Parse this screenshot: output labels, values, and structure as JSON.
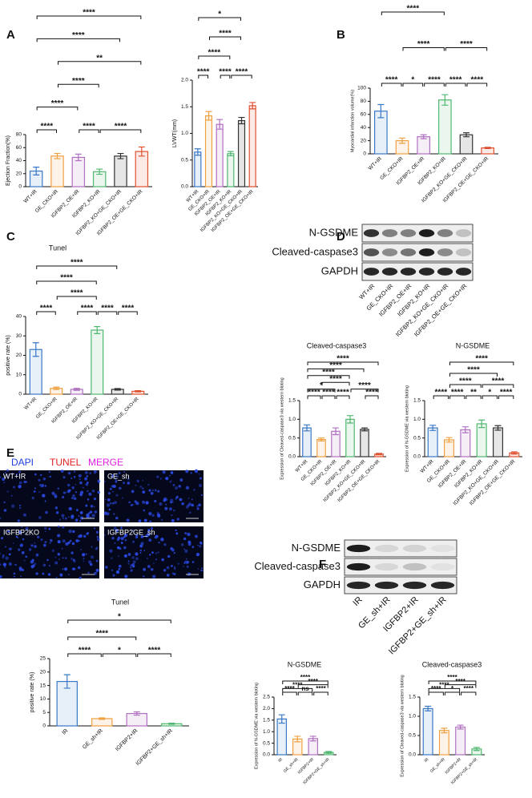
{
  "panel_labels": [
    "A",
    "B",
    "C",
    "D",
    "E",
    "F"
  ],
  "blots": [
    {
      "rows": [
        "N-GSDME",
        "Cleaved-caspase3",
        "GAPDH"
      ],
      "lanes": [
        "WT+IR",
        "GE_CKO+IR",
        "IGFBP2_OE+IR",
        "IGFBP2_KO+IR",
        "IGFBP2_KO+GE_CKO+IR",
        "IGFBP2_OE+GE_CKO+IR"
      ]
    },
    {
      "rows": [
        "N-GSDME",
        "Cleaved-caspase3",
        "GAPDH"
      ],
      "lanes": [
        "IR",
        "GE_sh+IR",
        "IGFBP2+IR",
        "IGFBP2+GE_sh+IR"
      ]
    }
  ],
  "micrographs": {
    "legend": [
      {
        "label": "DAPI",
        "color": "#2040e0"
      },
      {
        "label": "TUNEL",
        "color": "#e02020"
      },
      {
        "label": "MERGE",
        "color": "#e020e0"
      }
    ],
    "panels": [
      "WT+IR",
      "GE_sh",
      "IGFBP2KO",
      "IGFBP2GE_sh"
    ]
  },
  "chart_data": [
    {
      "type": "bar",
      "y_label": "Ejection Fraction(%)",
      "categories": [
        "WT+IR",
        "GE_CKO+IR",
        "IGFBP2_OE+IR",
        "IGFBP2_KO+IR",
        "IGFBP2_KO+GE_CKO+IR",
        "IGFBP2_OE+GE_CKO+IR"
      ],
      "values": [
        24,
        47,
        45,
        23,
        47,
        54
      ],
      "errors": [
        6,
        4,
        5,
        4,
        4,
        7
      ],
      "colors": [
        "#3a78c8",
        "#f0a040",
        "#b070c0",
        "#50b870",
        "#333333",
        "#e05030"
      ],
      "ylim": [
        0,
        80
      ],
      "yticks": [
        0,
        20,
        40,
        60,
        80
      ],
      "comparisons": [
        {
          "pair": [
            0,
            5
          ],
          "label": "****"
        },
        {
          "pair": [
            0,
            4
          ],
          "label": "****"
        },
        {
          "pair": [
            1,
            5
          ],
          "label": "**"
        },
        {
          "pair": [
            1,
            3
          ],
          "label": "****"
        },
        {
          "pair": [
            0,
            2
          ],
          "label": "****"
        },
        {
          "pair": [
            3,
            5
          ],
          "label": "****"
        },
        {
          "pair": [
            0,
            1
          ],
          "label": "****"
        },
        {
          "pair": [
            2,
            3
          ],
          "label": "****"
        }
      ]
    },
    {
      "type": "bar",
      "y_label": "LVWT(mm)",
      "categories": [
        "WT+IR",
        "GE_CKO+IR",
        "IGFBP2_OE+IR",
        "IGFBP2_KO+IR",
        "IGFBP2_KO+GE_CKO+IR",
        "IGFBP2_OE+GE_CKO+IR"
      ],
      "values": [
        0.65,
        1.33,
        1.17,
        0.62,
        1.24,
        1.52
      ],
      "errors": [
        0.06,
        0.08,
        0.09,
        0.04,
        0.06,
        0.06
      ],
      "colors": [
        "#3a78c8",
        "#f0a040",
        "#b070c0",
        "#50b870",
        "#333333",
        "#e05030"
      ],
      "ylim": [
        0,
        2
      ],
      "yticks": [
        {
          "value": 0,
          "label": "0.0"
        },
        0.5,
        {
          "value": 1,
          "label": "1.0"
        },
        1.5,
        {
          "value": 2,
          "label": "2.0"
        }
      ],
      "comparisons": [
        {
          "pair": [
            0,
            4
          ],
          "label": "*"
        },
        {
          "pair": [
            1,
            4
          ],
          "label": "****"
        },
        {
          "pair": [
            0,
            3
          ],
          "label": "****"
        },
        {
          "pair": [
            0,
            1
          ],
          "label": "****"
        },
        {
          "pair": [
            2,
            3
          ],
          "label": "****"
        },
        {
          "pair": [
            3,
            5
          ],
          "label": "****"
        }
      ]
    },
    {
      "type": "bar",
      "y_label": "Myocardial infarction volume(%)",
      "categories": [
        "WT+IR",
        "GE_CKO+IR",
        "IGFBP2_OE+IR",
        "IGFBP2_KO+IR",
        "IGFBP2_KO+GE_CKO+IR",
        "IGFBP2_OE+GE_CKO+IR"
      ],
      "values": [
        65,
        20,
        26,
        82,
        29,
        9
      ],
      "errors": [
        10,
        4,
        3,
        8,
        3,
        1
      ],
      "colors": [
        "#3a78c8",
        "#f0a040",
        "#b070c0",
        "#50b870",
        "#333333",
        "#e05030"
      ],
      "ylim": [
        0,
        100
      ],
      "yticks": [
        0,
        20,
        40,
        60,
        80,
        100
      ],
      "comparisons": [
        {
          "pair": [
            3,
            5
          ],
          "label": "****"
        },
        {
          "pair": [
            1,
            3
          ],
          "label": "****"
        },
        {
          "pair": [
            0,
            3
          ],
          "label": "****"
        },
        {
          "pair": [
            3,
            4
          ],
          "label": "****"
        },
        {
          "pair": [
            1,
            2
          ],
          "label": "*"
        },
        {
          "pair": [
            0,
            1
          ],
          "label": "****"
        },
        {
          "pair": [
            2,
            3
          ],
          "label": "****"
        },
        {
          "pair": [
            4,
            5
          ],
          "label": "****"
        }
      ]
    },
    {
      "type": "bar",
      "title": "Tunel",
      "y_label": "positive rate (%)",
      "categories": [
        "WT+IR",
        "GE_CKO+IR",
        "IGFBP2_OE+IR",
        "IGFBP2_KO+IR",
        "IGFBP2_KO+GE_CKO+IR",
        "IGFBP2_OE+GE_CKO+IR"
      ],
      "values": [
        23,
        3,
        2.5,
        33,
        2.5,
        1.5
      ],
      "errors": [
        3.5,
        0.6,
        0.5,
        1.8,
        0.4,
        0.3
      ],
      "colors": [
        "#3a78c8",
        "#f0a040",
        "#b070c0",
        "#50b870",
        "#333333",
        "#e05030"
      ],
      "ylim": [
        0,
        40
      ],
      "yticks": [
        0,
        10,
        20,
        30,
        40
      ],
      "comparisons": [
        {
          "pair": [
            0,
            4
          ],
          "label": "****"
        },
        {
          "pair": [
            0,
            3
          ],
          "label": "****"
        },
        {
          "pair": [
            1,
            3
          ],
          "label": "****"
        },
        {
          "pair": [
            0,
            1
          ],
          "label": "****"
        },
        {
          "pair": [
            2,
            3
          ],
          "label": "****"
        },
        {
          "pair": [
            3,
            4
          ],
          "label": "****"
        },
        {
          "pair": [
            4,
            5
          ],
          "label": "****"
        }
      ]
    },
    {
      "type": "bar",
      "title": "Cleaved-caspase3",
      "y_label": "Expression of Cleaved-caspase3 via western bloting",
      "categories": [
        "WT+IR",
        "GE_CKO+IR",
        "IGFBP2_OE+IR",
        "IGFBP2_KO+IR",
        "IGFBP2_KO+GE_CKO+IR",
        "IGFBP2_OE+GE_CKO+IR"
      ],
      "values": [
        0.77,
        0.46,
        0.68,
        1.0,
        0.73,
        0.07
      ],
      "errors": [
        0.08,
        0.04,
        0.09,
        0.1,
        0.04,
        0.02
      ],
      "colors": [
        "#3a78c8",
        "#f0a040",
        "#b070c0",
        "#50b870",
        "#333333",
        "#e05030"
      ],
      "ylim": [
        0,
        1.5
      ],
      "yticks": [
        {
          "value": 0,
          "label": "0.0"
        },
        0.5,
        {
          "value": 1,
          "label": "1.0"
        },
        1.5
      ],
      "comparisons": [
        {
          "pair": [
            0,
            5
          ],
          "label": "****"
        },
        {
          "pair": [
            0,
            4
          ],
          "label": "****"
        },
        {
          "pair": [
            0,
            3
          ],
          "label": "****"
        },
        {
          "pair": [
            1,
            3
          ],
          "label": "****"
        },
        {
          "pair": [
            0,
            2
          ],
          "label": "*"
        },
        {
          "pair": [
            3,
            5
          ],
          "label": "****"
        },
        {
          "pair": [
            1,
            2
          ],
          "label": "****"
        },
        {
          "pair": [
            0,
            1
          ],
          "label": "****"
        },
        {
          "pair": [
            2,
            3
          ],
          "label": "****"
        },
        {
          "pair": [
            4,
            5
          ],
          "label": "****"
        }
      ]
    },
    {
      "type": "bar",
      "title": "N-GSDME",
      "y_label": "Expression of N-GSDME via western bloting",
      "categories": [
        "WT+IR",
        "GE_CKO+IR",
        "IGFBP2_OE+IR",
        "IGFBP2_KO+IR",
        "IGFBP2_KO+GE_CKO+IR",
        "IGFBP2_OE+GE_CKO+IR"
      ],
      "values": [
        0.77,
        0.45,
        0.72,
        0.88,
        0.77,
        0.1
      ],
      "errors": [
        0.07,
        0.06,
        0.08,
        0.1,
        0.06,
        0.03
      ],
      "colors": [
        "#3a78c8",
        "#f0a040",
        "#b070c0",
        "#50b870",
        "#333333",
        "#e05030"
      ],
      "ylim": [
        0,
        1.5
      ],
      "yticks": [
        {
          "value": 0,
          "label": "0.0"
        },
        0.5,
        {
          "value": 1,
          "label": "1.0"
        },
        1.5
      ],
      "comparisons": [
        {
          "pair": [
            1,
            5
          ],
          "label": "****"
        },
        {
          "pair": [
            1,
            4
          ],
          "label": "****"
        },
        {
          "pair": [
            1,
            3
          ],
          "label": "****"
        },
        {
          "pair": [
            1,
            2
          ],
          "label": "****"
        },
        {
          "pair": [
            3,
            5
          ],
          "label": "****"
        },
        {
          "pair": [
            3,
            4
          ],
          "label": "*"
        },
        {
          "pair": [
            0,
            1
          ],
          "label": "****"
        },
        {
          "pair": [
            2,
            3
          ],
          "label": "**"
        },
        {
          "pair": [
            4,
            5
          ],
          "label": "****"
        }
      ]
    },
    {
      "type": "bar",
      "title": "Tunel",
      "y_label": "positive rate (%)",
      "categories": [
        "IR",
        "GE_sh+IR",
        "IGFBP2+IR",
        "IGFBP2+GE_sh+IR"
      ],
      "values": [
        16.5,
        2.7,
        4.6,
        0.8
      ],
      "errors": [
        2.5,
        0.3,
        0.6,
        0.2
      ],
      "colors": [
        "#3a78c8",
        "#f0a040",
        "#b070c0",
        "#50b870"
      ],
      "ylim": [
        0,
        25
      ],
      "yticks": [
        0,
        5,
        10,
        15,
        20,
        25
      ],
      "comparisons": [
        {
          "pair": [
            0,
            3
          ],
          "label": "*"
        },
        {
          "pair": [
            0,
            2
          ],
          "label": "****"
        },
        {
          "pair": [
            0,
            1
          ],
          "label": "****"
        },
        {
          "pair": [
            1,
            2
          ],
          "label": "*"
        },
        {
          "pair": [
            2,
            3
          ],
          "label": "****"
        }
      ]
    },
    {
      "type": "bar",
      "title": "N-GSDME",
      "y_label": "Expression of N-GSDME via western bloting",
      "categories": [
        "IR",
        "GE_sh+IR",
        "IGFBP2+IR",
        "IGFBP2+GE_sh+IR"
      ],
      "values": [
        1.55,
        0.68,
        0.7,
        0.1
      ],
      "errors": [
        0.18,
        0.12,
        0.1,
        0.04
      ],
      "colors": [
        "#3a78c8",
        "#f0a040",
        "#b070c0",
        "#50b870"
      ],
      "ylim": [
        0,
        2.5
      ],
      "yticks": [
        {
          "value": 0,
          "label": "0.0"
        },
        0.5,
        {
          "value": 1,
          "label": "1.0"
        },
        1.5,
        {
          "value": 2,
          "label": "2.0"
        },
        2.5
      ],
      "comparisons": [
        {
          "pair": [
            0,
            3
          ],
          "label": "****"
        },
        {
          "pair": [
            1,
            3
          ],
          "label": "****"
        },
        {
          "pair": [
            0,
            2
          ],
          "label": "****"
        },
        {
          "pair": [
            0,
            1
          ],
          "label": "****"
        },
        {
          "pair": [
            1,
            2
          ],
          "label": "ns"
        },
        {
          "pair": [
            2,
            3
          ],
          "label": "****"
        }
      ]
    },
    {
      "type": "bar",
      "title": "Cleaved-caspase3",
      "y_label": "Expression of Cleaved-caspase3 via western bloting",
      "categories": [
        "IR",
        "GE_sh+IR",
        "IGFBP2+IR",
        "IGFBP2+GE_sh+IR"
      ],
      "values": [
        1.2,
        0.63,
        0.72,
        0.15
      ],
      "errors": [
        0.06,
        0.06,
        0.05,
        0.04
      ],
      "colors": [
        "#3a78c8",
        "#f0a040",
        "#b070c0",
        "#50b870"
      ],
      "ylim": [
        0,
        1.5
      ],
      "yticks": [
        {
          "value": 0,
          "label": "0.0"
        },
        0.5,
        {
          "value": 1,
          "label": "1.0"
        },
        1.5
      ],
      "comparisons": [
        {
          "pair": [
            0,
            3
          ],
          "label": "****"
        },
        {
          "pair": [
            1,
            3
          ],
          "label": "****"
        },
        {
          "pair": [
            0,
            2
          ],
          "label": "****"
        },
        {
          "pair": [
            0,
            1
          ],
          "label": "****"
        },
        {
          "pair": [
            1,
            2
          ],
          "label": "*"
        },
        {
          "pair": [
            2,
            3
          ],
          "label": "****"
        }
      ]
    }
  ]
}
